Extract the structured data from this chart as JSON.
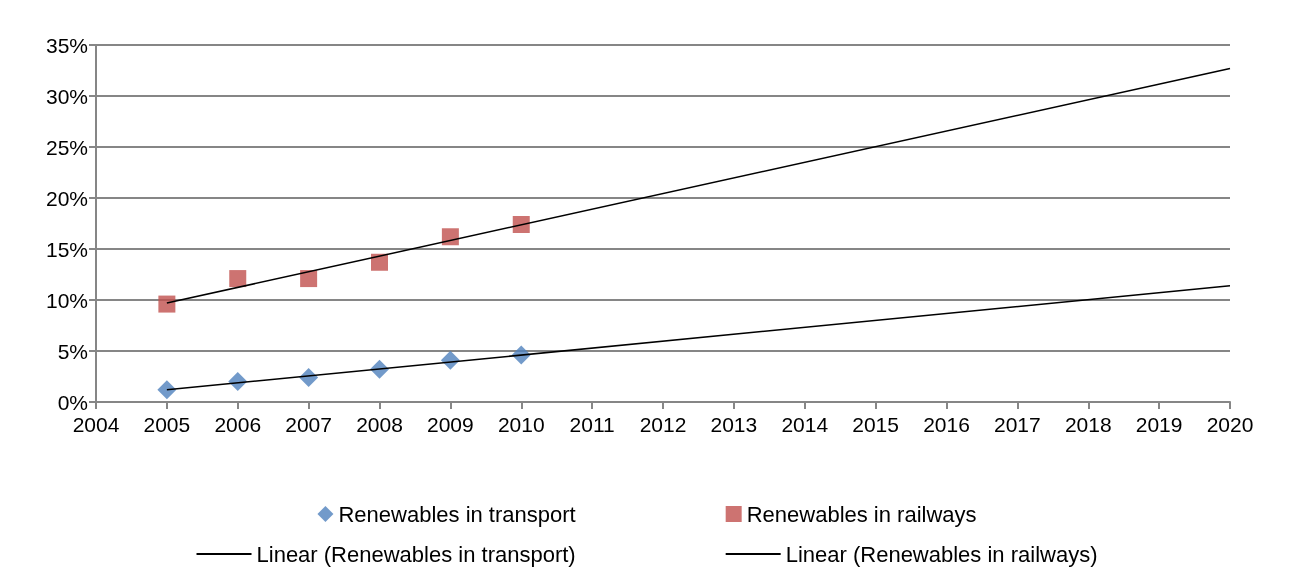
{
  "chart_data": {
    "type": "scatter",
    "xlim": [
      2004,
      2020
    ],
    "xticks": [
      2004,
      2005,
      2006,
      2007,
      2008,
      2009,
      2010,
      2011,
      2012,
      2013,
      2014,
      2015,
      2016,
      2017,
      2018,
      2019,
      2020
    ],
    "ylim": [
      0,
      35
    ],
    "yticks": [
      {
        "value": 0,
        "label": "0%"
      },
      {
        "value": 5,
        "label": "5%"
      },
      {
        "value": 10,
        "label": "10%"
      },
      {
        "value": 15,
        "label": "15%"
      },
      {
        "value": 20,
        "label": "20%"
      },
      {
        "value": 25,
        "label": "25%"
      },
      {
        "value": 30,
        "label": "30%"
      },
      {
        "value": 35,
        "label": "35%"
      }
    ],
    "grid": "y",
    "legend": "bottom",
    "series": [
      {
        "name": "Renewables in transport",
        "type": "scatter",
        "marker": "diamond",
        "color": "#4f81bd",
        "x": [
          2005,
          2006,
          2007,
          2008,
          2009,
          2010
        ],
        "values": [
          1.2,
          2.0,
          2.4,
          3.2,
          4.1,
          4.6
        ]
      },
      {
        "name": "Renewables in railways",
        "type": "scatter",
        "marker": "square",
        "color": "#c0504d",
        "x": [
          2005,
          2006,
          2007,
          2008,
          2009,
          2010
        ],
        "values": [
          9.6,
          12.1,
          12.1,
          13.7,
          16.2,
          17.4
        ]
      },
      {
        "name": "Linear (Renewables in transport)",
        "type": "line",
        "marker": "none",
        "line_style": "solid",
        "color": "#000000",
        "x": [
          2005,
          2020
        ],
        "values": [
          1.2,
          11.4
        ]
      },
      {
        "name": "Linear (Renewables in railways)",
        "type": "line",
        "marker": "none",
        "line_style": "solid",
        "color": "#000000",
        "x": [
          2005,
          2020
        ],
        "values": [
          9.7,
          32.7
        ]
      }
    ]
  }
}
